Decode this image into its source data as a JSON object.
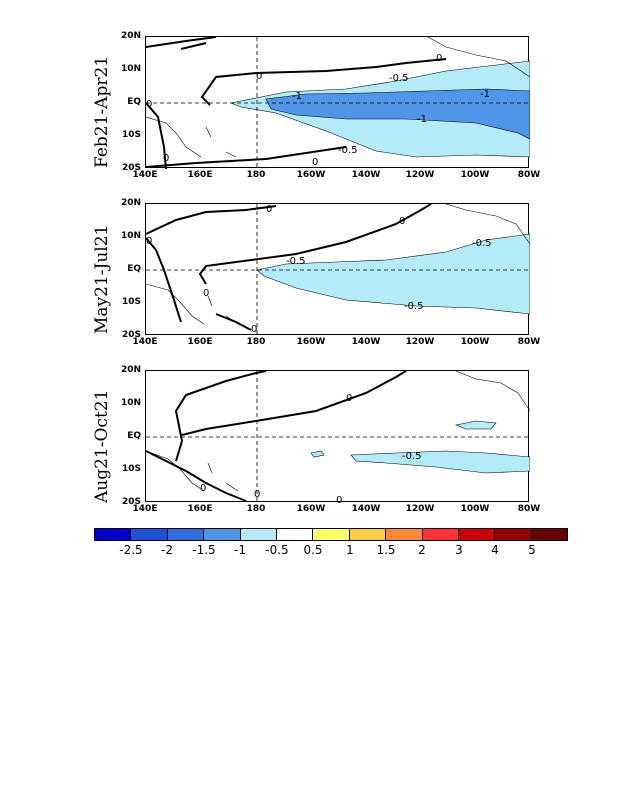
{
  "panels": [
    {
      "title": "Feb21-Apr21",
      "labels": [
        "-0.5",
        "-1",
        "-1",
        "-1",
        "-0.5",
        "0",
        "0",
        "0",
        "0",
        "0"
      ]
    },
    {
      "title": "May21-Jul21",
      "labels": [
        "-0.5",
        "-0.5",
        "-0.5",
        "0",
        "0",
        "0",
        "0",
        "0"
      ]
    },
    {
      "title": "Aug21-Oct21",
      "labels": [
        "-0.5",
        "0",
        "0",
        "0",
        "0"
      ]
    }
  ],
  "lat_ticks": [
    "20N",
    "10N",
    "EQ",
    "10S",
    "20S"
  ],
  "lon_ticks": [
    "140E",
    "160E",
    "180",
    "160W",
    "140W",
    "120W",
    "100W",
    "80W"
  ],
  "colorbar": {
    "colors": [
      "#0000cd",
      "#1e50d8",
      "#2f6ee0",
      "#4f96e8",
      "#b3ecf8",
      "#ffffff",
      "#ffff66",
      "#ffcc44",
      "#ff8833",
      "#ff3333",
      "#cc0000",
      "#990000",
      "#660000"
    ],
    "labels": [
      "-2.5",
      "-2",
      "-1.5",
      "-1",
      "-0.5",
      "0.5",
      "1",
      "1.5",
      "2",
      "3",
      "4",
      "5"
    ]
  }
}
